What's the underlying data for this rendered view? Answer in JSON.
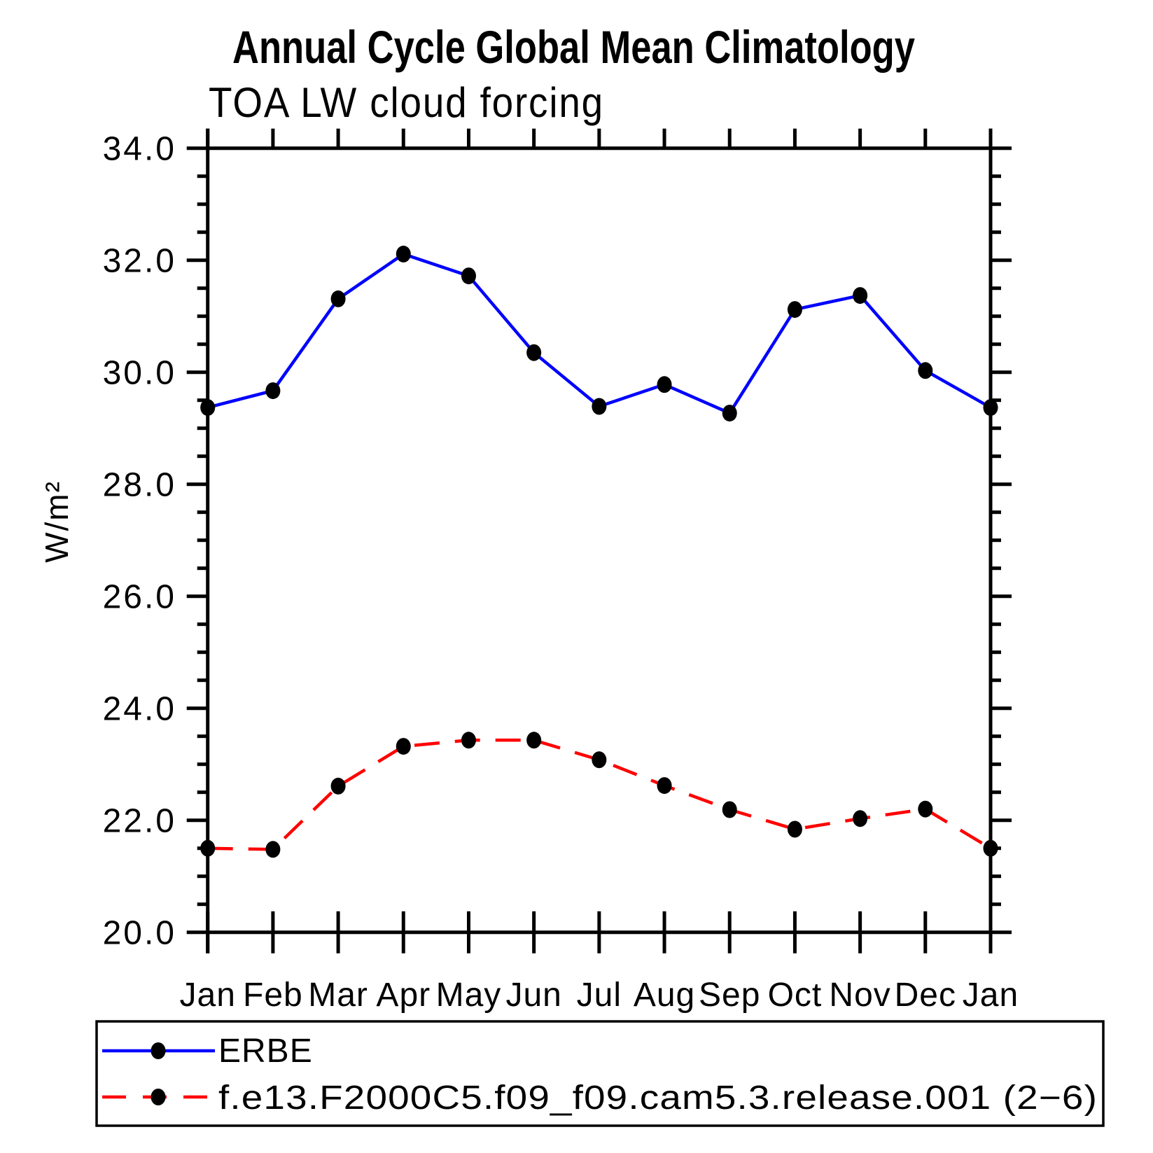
{
  "chart_data": {
    "type": "line",
    "title": "Annual Cycle Global Mean Climatology",
    "subtitle": "TOA LW cloud forcing",
    "ylabel": "W/m²",
    "categories": [
      "Jan",
      "Feb",
      "Mar",
      "Apr",
      "May",
      "Jun",
      "Jul",
      "Aug",
      "Sep",
      "Oct",
      "Nov",
      "Dec",
      "Jan"
    ],
    "ylim": [
      20.0,
      34.0
    ],
    "y_major_step": 2.0,
    "y_minor_step": 0.5,
    "y_tick_labels": [
      "20.0",
      "22.0",
      "24.0",
      "26.0",
      "28.0",
      "30.0",
      "32.0",
      "34.0"
    ],
    "grid": false,
    "legend_position": "bottom",
    "marker": "filled-circle",
    "marker_color": "#000000",
    "series": [
      {
        "name": "ERBE",
        "color": "#0000FF",
        "style": "solid",
        "values": [
          29.37,
          29.67,
          31.31,
          32.11,
          31.72,
          30.35,
          29.39,
          29.78,
          29.27,
          31.12,
          31.37,
          30.03,
          29.37
        ]
      },
      {
        "name": "f.e13.F2000C5.f09_f09.cam5.3.release.001 (2−6)",
        "color": "#FF0000",
        "style": "dashed",
        "values": [
          21.5,
          21.48,
          22.61,
          23.32,
          23.43,
          23.43,
          23.08,
          22.62,
          22.19,
          21.84,
          22.03,
          22.2,
          21.5
        ]
      }
    ]
  }
}
